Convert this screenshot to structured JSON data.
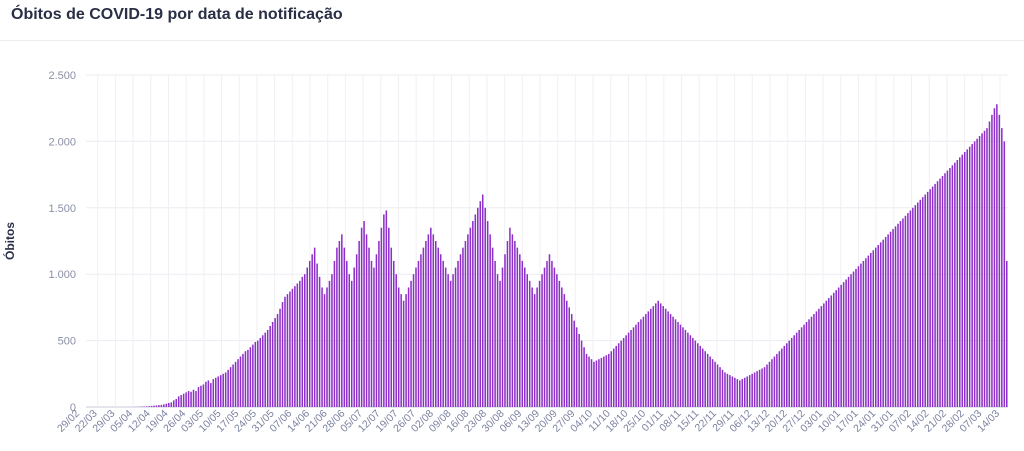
{
  "title": "Óbitos de COVID-19 por data de notificação",
  "chart_data": {
    "type": "bar",
    "title": "Óbitos de COVID-19 por data de notificação",
    "xlabel": "",
    "ylabel": "Óbitos",
    "ylim": [
      0,
      2500
    ],
    "y_ticks": [
      0,
      500,
      1000,
      1500,
      2000,
      2500
    ],
    "y_tick_labels": [
      "0",
      "500",
      "1.000",
      "1.500",
      "2.000",
      "2.500"
    ],
    "x_tick_labels": [
      "29/02",
      "22/03",
      "29/03",
      "05/04",
      "12/04",
      "19/04",
      "26/04",
      "03/05",
      "10/05",
      "17/05",
      "24/05",
      "31/05",
      "07/06",
      "14/06",
      "21/06",
      "28/06",
      "05/07",
      "12/07",
      "19/07",
      "26/07",
      "02/08",
      "09/08",
      "16/08",
      "23/08",
      "30/08",
      "06/09",
      "13/09",
      "20/09",
      "27/09",
      "04/10",
      "11/10",
      "18/10",
      "25/10",
      "01/11",
      "08/11",
      "15/11",
      "22/11",
      "29/11",
      "06/12",
      "13/12",
      "20/12",
      "27/12",
      "03/01",
      "10/01",
      "17/01",
      "24/01",
      "31/01",
      "07/02",
      "14/02",
      "21/02",
      "28/02",
      "07/03",
      "14/03"
    ],
    "grid": true,
    "bar_color": "#8e2fc7",
    "series": [
      {
        "values": [
          0,
          0,
          0,
          0,
          0,
          0,
          0,
          0,
          0,
          0,
          0,
          0,
          0,
          0,
          0,
          0,
          0,
          0,
          0,
          1,
          1,
          2,
          3,
          4,
          5,
          6,
          8,
          10,
          12,
          14,
          16,
          20,
          25,
          30,
          35,
          50,
          60,
          80,
          90,
          100,
          110,
          120,
          115,
          130,
          120,
          150,
          160,
          170,
          190,
          200,
          180,
          210,
          220,
          230,
          240,
          250,
          260,
          280,
          300,
          320,
          340,
          360,
          380,
          400,
          420,
          430,
          450,
          470,
          490,
          500,
          520,
          540,
          560,
          580,
          610,
          640,
          670,
          700,
          740,
          790,
          830,
          850,
          870,
          890,
          910,
          930,
          950,
          980,
          1000,
          1050,
          1100,
          1150,
          1200,
          1080,
          980,
          900,
          850,
          900,
          950,
          1000,
          1100,
          1200,
          1250,
          1300,
          1200,
          1100,
          1000,
          950,
          1050,
          1150,
          1250,
          1350,
          1400,
          1300,
          1200,
          1100,
          1050,
          1150,
          1250,
          1350,
          1450,
          1480,
          1350,
          1200,
          1100,
          1000,
          900,
          850,
          800,
          850,
          900,
          950,
          1000,
          1050,
          1100,
          1150,
          1200,
          1250,
          1300,
          1350,
          1300,
          1250,
          1200,
          1150,
          1100,
          1050,
          1000,
          950,
          1000,
          1050,
          1100,
          1150,
          1200,
          1250,
          1300,
          1350,
          1400,
          1450,
          1500,
          1550,
          1600,
          1500,
          1400,
          1300,
          1200,
          1100,
          1000,
          950,
          1050,
          1150,
          1250,
          1350,
          1300,
          1250,
          1200,
          1150,
          1100,
          1050,
          1000,
          950,
          900,
          850,
          900,
          950,
          1000,
          1050,
          1100,
          1150,
          1100,
          1050,
          1000,
          950,
          900,
          850,
          800,
          750,
          700,
          650,
          600,
          550,
          500,
          450,
          400,
          380,
          360,
          340,
          350,
          360,
          370,
          380,
          390,
          400,
          420,
          440,
          460,
          480,
          500,
          520,
          540,
          560,
          580,
          600,
          620,
          640,
          660,
          680,
          700,
          720,
          740,
          760,
          780,
          800,
          780,
          760,
          740,
          720,
          700,
          680,
          660,
          640,
          620,
          600,
          580,
          560,
          540,
          520,
          500,
          480,
          460,
          440,
          420,
          400,
          380,
          360,
          340,
          320,
          300,
          280,
          260,
          250,
          240,
          230,
          220,
          210,
          200,
          210,
          220,
          230,
          240,
          250,
          260,
          270,
          280,
          290,
          300,
          320,
          340,
          360,
          380,
          400,
          420,
          440,
          460,
          480,
          500,
          520,
          540,
          560,
          580,
          600,
          620,
          640,
          660,
          680,
          700,
          720,
          740,
          760,
          780,
          800,
          820,
          840,
          860,
          880,
          900,
          920,
          940,
          960,
          980,
          1000,
          1020,
          1040,
          1060,
          1080,
          1100,
          1120,
          1140,
          1160,
          1180,
          1200,
          1220,
          1240,
          1260,
          1280,
          1300,
          1320,
          1340,
          1360,
          1380,
          1400,
          1420,
          1440,
          1460,
          1480,
          1500,
          1520,
          1540,
          1560,
          1580,
          1600,
          1620,
          1640,
          1660,
          1680,
          1700,
          1720,
          1740,
          1760,
          1780,
          1800,
          1820,
          1840,
          1860,
          1880,
          1900,
          1920,
          1940,
          1960,
          1980,
          2000,
          2020,
          2040,
          2060,
          2080,
          2100,
          2150,
          2200,
          2250,
          2280,
          2200,
          2100,
          2000,
          1100
        ]
      }
    ]
  }
}
